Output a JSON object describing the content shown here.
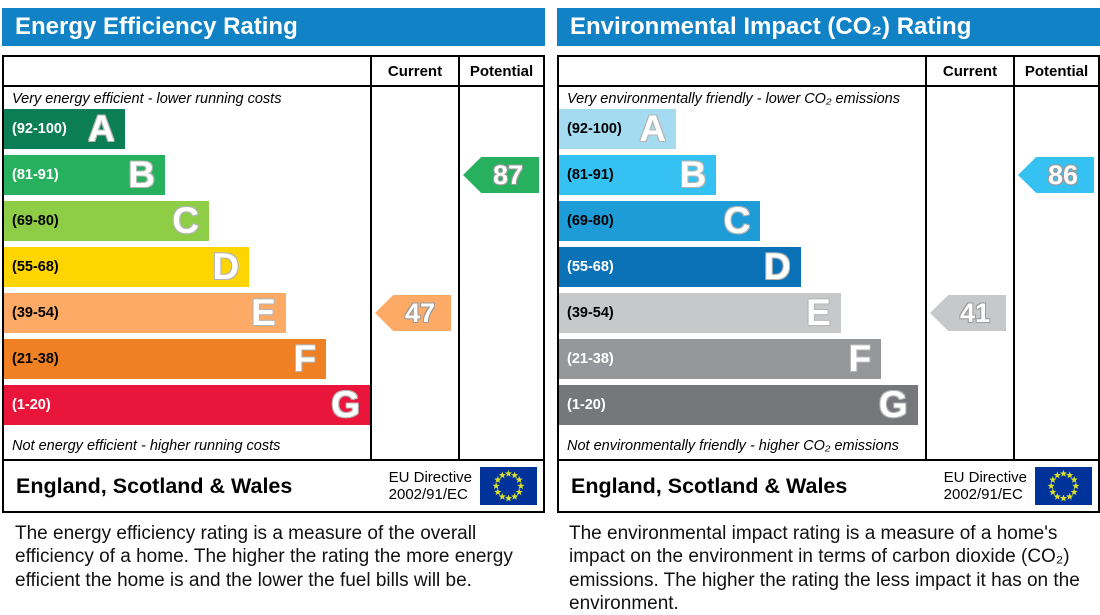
{
  "accent_blue": "#1182c5",
  "eu_flag": {
    "field": "#003399",
    "stars": "#d8de2c"
  },
  "panels": [
    {
      "title": "Energy Efficiency Rating",
      "header": {
        "current": "Current",
        "potential": "Potential"
      },
      "top_note": "Very energy efficient - lower running costs",
      "bottom_note": "Not energy efficient - higher running costs",
      "bands": [
        {
          "letter": "A",
          "range": "(92-100)",
          "color": "#0b7e55",
          "text_color": "#ffffff",
          "width_pct": 33
        },
        {
          "letter": "B",
          "range": "(81-91)",
          "color": "#27b05e",
          "text_color": "#ffffff",
          "width_pct": 44
        },
        {
          "letter": "C",
          "range": "(69-80)",
          "color": "#8dce46",
          "text_color": "#000000",
          "width_pct": 56
        },
        {
          "letter": "D",
          "range": "(55-68)",
          "color": "#ffd500",
          "text_color": "#000000",
          "width_pct": 67
        },
        {
          "letter": "E",
          "range": "(39-54)",
          "color": "#fcaa65",
          "text_color": "#000000",
          "width_pct": 77
        },
        {
          "letter": "F",
          "range": "(21-38)",
          "color": "#ef8023",
          "text_color": "#000000",
          "width_pct": 88
        },
        {
          "letter": "G",
          "range": "(1-20)",
          "color": "#e9153b",
          "text_color": "#ffffff",
          "width_pct": 100
        }
      ],
      "current": {
        "value": "47",
        "row": 4,
        "color": "#fcaa65"
      },
      "potential": {
        "value": "87",
        "row": 1,
        "color": "#27b05e"
      },
      "footer": {
        "region": "England, Scotland & Wales",
        "directive_line1": "EU Directive",
        "directive_line2": "2002/91/EC"
      },
      "description": "The energy efficiency rating is a measure of the overall efficiency of a home. The higher the rating the more energy efficient the home is and the lower the fuel bills will be."
    },
    {
      "title": "Environmental Impact (CO₂) Rating",
      "header": {
        "current": "Current",
        "potential": "Potential"
      },
      "top_note": "Very environmentally friendly - lower CO₂ emissions",
      "bottom_note": "Not environmentally friendly - higher CO₂ emissions",
      "bands": [
        {
          "letter": "A",
          "range": "(92-100)",
          "color": "#a4dbf1",
          "text_color": "#000000",
          "width_pct": 32
        },
        {
          "letter": "B",
          "range": "(81-91)",
          "color": "#35c1f1",
          "text_color": "#000000",
          "width_pct": 43
        },
        {
          "letter": "C",
          "range": "(69-80)",
          "color": "#1e9cd8",
          "text_color": "#000000",
          "width_pct": 55
        },
        {
          "letter": "D",
          "range": "(55-68)",
          "color": "#0c72b8",
          "text_color": "#ffffff",
          "width_pct": 66
        },
        {
          "letter": "E",
          "range": "(39-54)",
          "color": "#c7c8ca",
          "text_color": "#000000",
          "width_pct": 77
        },
        {
          "letter": "F",
          "range": "(21-38)",
          "color": "#96979a",
          "text_color": "#ffffff",
          "width_pct": 88
        },
        {
          "letter": "G",
          "range": "(1-20)",
          "color": "#76777a",
          "text_color": "#ffffff",
          "width_pct": 98
        }
      ],
      "current": {
        "value": "41",
        "row": 4,
        "color": "#c7c8ca"
      },
      "potential": {
        "value": "86",
        "row": 1,
        "color": "#35c1f1"
      },
      "footer": {
        "region": "England, Scotland & Wales",
        "directive_line1": "EU Directive",
        "directive_line2": "2002/91/EC"
      },
      "description": "The environmental impact rating is a measure of a home's impact on the environment in terms of carbon dioxide (CO₂) emissions. The higher the rating the less impact it has on the environment."
    }
  ],
  "chart_data": [
    {
      "type": "bar",
      "title": "Energy Efficiency Rating",
      "categories": [
        "A",
        "B",
        "C",
        "D",
        "E",
        "F",
        "G"
      ],
      "band_ranges": [
        "92-100",
        "81-91",
        "69-80",
        "55-68",
        "39-54",
        "21-38",
        "1-20"
      ],
      "band_colors": [
        "#0b7e55",
        "#27b05e",
        "#8dce46",
        "#ffd500",
        "#fcaa65",
        "#ef8023",
        "#e9153b"
      ],
      "current_value": 47,
      "current_band": "E",
      "potential_value": 87,
      "potential_band": "B",
      "top_annotation": "Very energy efficient - lower running costs",
      "bottom_annotation": "Not energy efficient - higher running costs",
      "footer": "England, Scotland & Wales — EU Directive 2002/91/EC",
      "xlim": [
        1,
        100
      ]
    },
    {
      "type": "bar",
      "title": "Environmental Impact (CO₂) Rating",
      "categories": [
        "A",
        "B",
        "C",
        "D",
        "E",
        "F",
        "G"
      ],
      "band_ranges": [
        "92-100",
        "81-91",
        "69-80",
        "55-68",
        "39-54",
        "21-38",
        "1-20"
      ],
      "band_colors": [
        "#a4dbf1",
        "#35c1f1",
        "#1e9cd8",
        "#0c72b8",
        "#c7c8ca",
        "#96979a",
        "#76777a"
      ],
      "current_value": 41,
      "current_band": "E",
      "potential_value": 86,
      "potential_band": "B",
      "top_annotation": "Very environmentally friendly - lower CO₂ emissions",
      "bottom_annotation": "Not environmentally friendly - higher CO₂ emissions",
      "footer": "England, Scotland & Wales — EU Directive 2002/91/EC",
      "xlim": [
        1,
        100
      ]
    }
  ]
}
